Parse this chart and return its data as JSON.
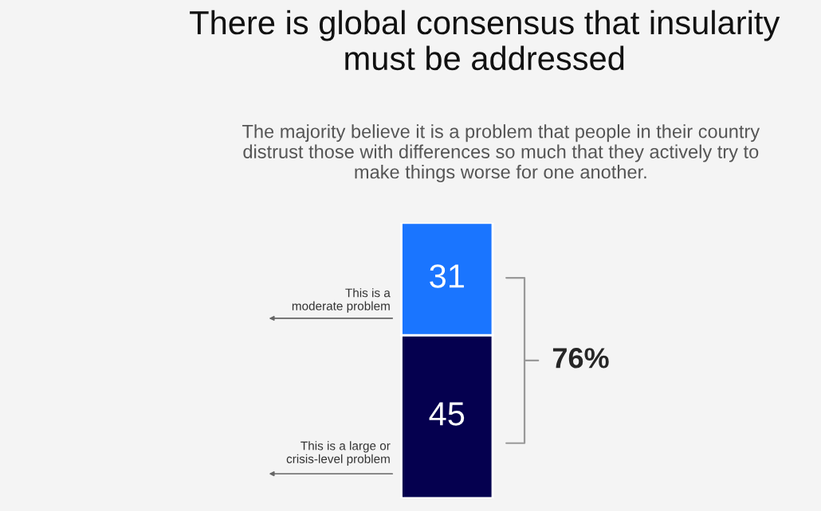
{
  "chart_data": {
    "type": "bar",
    "stacked": true,
    "title": "There is global consensus that insularity\nmust be addressed",
    "subtitle": "The majority believe it is a problem that people in their country\ndistrust those with differences so much that they actively try to\nmake things worse for one another.",
    "categories": [
      null
    ],
    "series": [
      {
        "name": "This is a large or\ncrisis-level problem",
        "color": "#05004f",
        "values": [
          45
        ]
      },
      {
        "name": "This is a\nmoderate problem",
        "color": "#1a75ff",
        "values": [
          31
        ]
      }
    ],
    "data_labels": true,
    "totals": [
      "76%"
    ]
  }
}
